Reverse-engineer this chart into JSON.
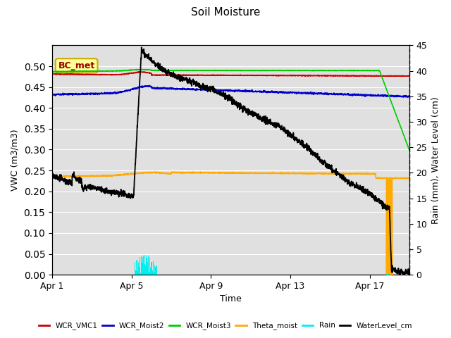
{
  "title": "Soil Moisture",
  "xlabel": "Time",
  "ylabel_left": "VWC (m3/m3)",
  "ylabel_right": "Rain (mm), Water Level (cm)",
  "annotation_label": "BC_met",
  "xlim": [
    0,
    18
  ],
  "ylim_left": [
    0.0,
    0.55
  ],
  "ylim_right": [
    0,
    45
  ],
  "xtick_labels": [
    "Apr 1",
    "Apr 5",
    "Apr 9",
    "Apr 13",
    "Apr 17"
  ],
  "xtick_positions": [
    0,
    4,
    8,
    12,
    16
  ],
  "ytick_left": [
    0.0,
    0.05,
    0.1,
    0.15,
    0.2,
    0.25,
    0.3,
    0.35,
    0.4,
    0.45,
    0.5
  ],
  "ytick_right": [
    0,
    5,
    10,
    15,
    20,
    25,
    30,
    35,
    40,
    45
  ],
  "colors": {
    "WCR_VMC1": "#cc0000",
    "WCR_Moist2": "#0000cc",
    "WCR_Moist3": "#00cc00",
    "Theta_moist": "#ffaa00",
    "Rain": "#00eeee",
    "WaterLevel_cm": "#000000"
  },
  "bg_color": "#e0e0e0",
  "fig_bg": "#ffffff",
  "annotation_facecolor": "#ffff99",
  "annotation_edgecolor": "#ccaa00"
}
